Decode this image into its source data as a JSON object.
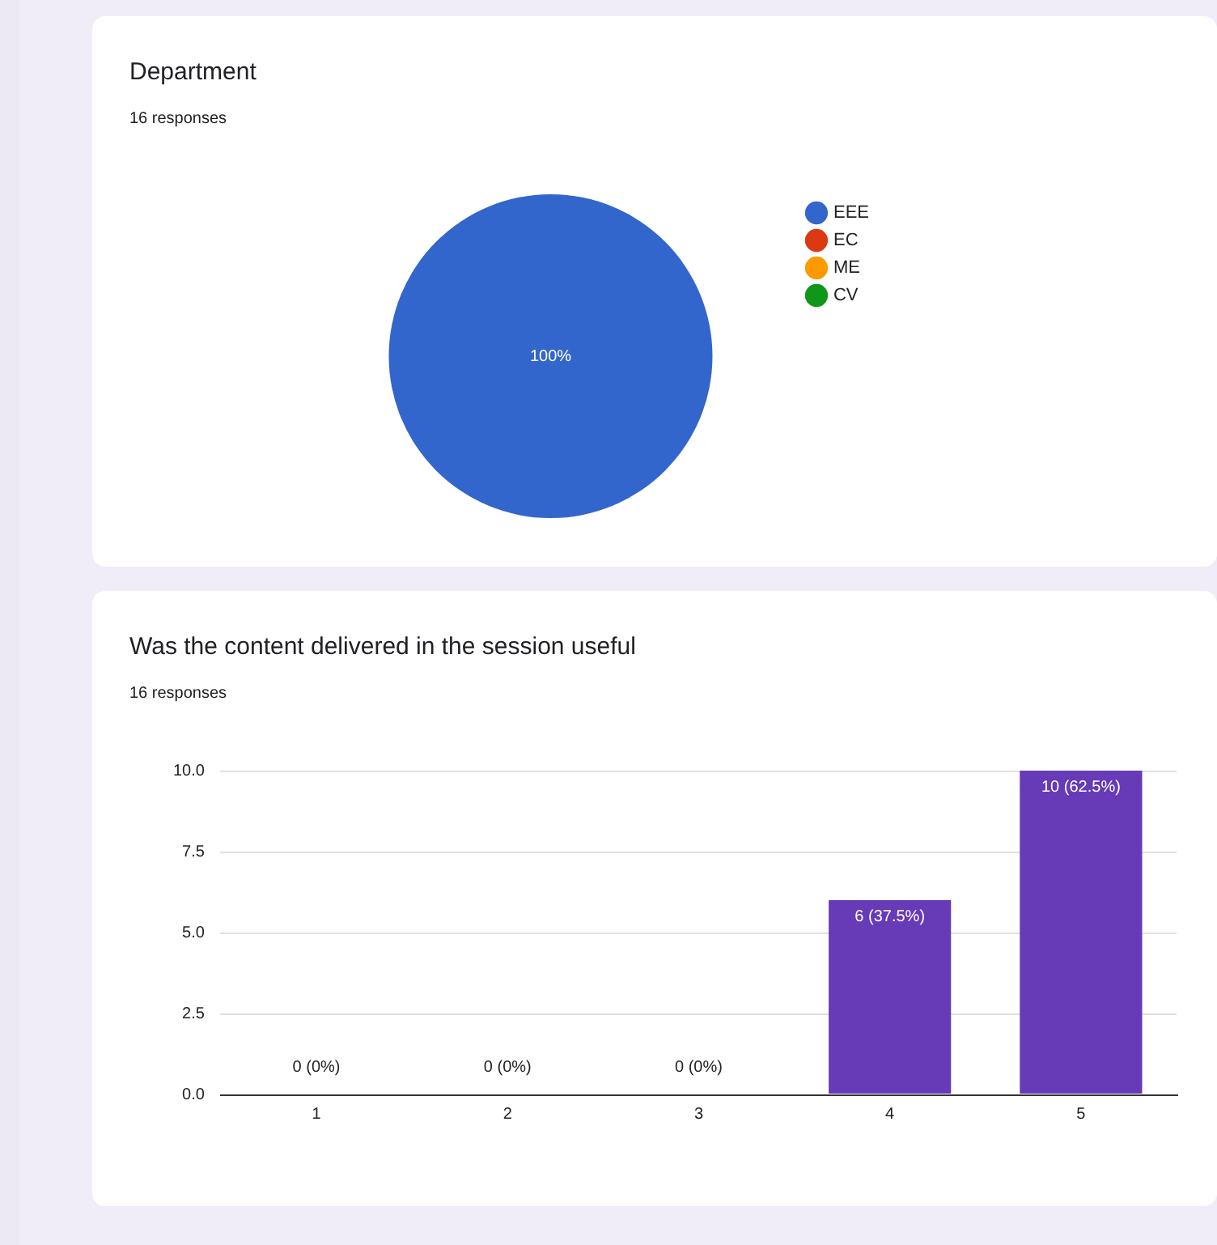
{
  "chart_data": [
    {
      "type": "pie",
      "title": "Department",
      "subtitle": "16 responses",
      "categories": [
        "EEE",
        "EC",
        "ME",
        "CV"
      ],
      "values": [
        100,
        0,
        0,
        0
      ],
      "colors": [
        "#3366cc",
        "#dc3912",
        "#ff9900",
        "#109618"
      ],
      "value_labels": [
        "100%",
        null,
        null,
        null
      ],
      "legend": "right"
    },
    {
      "type": "bar",
      "title": "Was the content delivered in the session useful",
      "subtitle": "16 responses",
      "categories": [
        "1",
        "2",
        "3",
        "4",
        "5"
      ],
      "values": [
        0,
        0,
        0,
        6,
        10
      ],
      "color": "#673ab7",
      "value_labels": [
        "0 (0%)",
        "0 (0%)",
        "0 (0%)",
        "6 (37.5%)",
        "10 (62.5%)"
      ],
      "ylim": [
        0,
        10
      ],
      "yticks": [
        {
          "value": 0,
          "label": "0.0"
        },
        {
          "value": 2.5,
          "label": "2.5"
        },
        {
          "value": 5,
          "label": "5.0"
        },
        {
          "value": 7.5,
          "label": "7.5"
        },
        {
          "value": 10,
          "label": "10.0"
        }
      ],
      "grid": "y"
    }
  ]
}
